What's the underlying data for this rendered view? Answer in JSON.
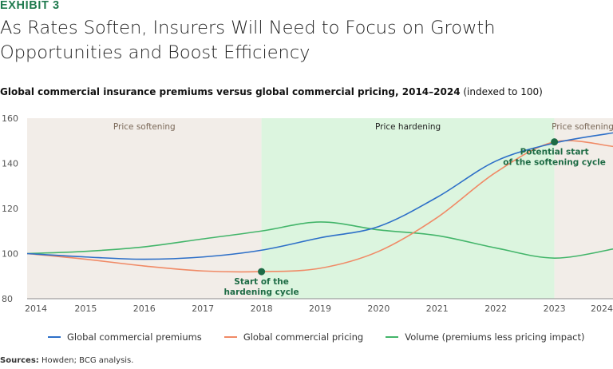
{
  "exhibit_label": "EXHIBIT 3",
  "title": "As Rates Soften, Insurers Will Need to Focus on Growth Opportunities and Boost Efficiency",
  "subtitle": {
    "main": "Global commercial insurance premiums versus global commercial pricing, 2014–2024",
    "note": "(indexed to 100)"
  },
  "sources": {
    "label": "Sources:",
    "text": "Howden; BCG analysis."
  },
  "colors": {
    "premiums": "#2d6fc8",
    "pricing": "#f08a66",
    "volume": "#43b56a",
    "softening_bg": "#f2ede8",
    "hardening_bg": "#dcf5df",
    "marker": "#1e6b45",
    "annotation_text": "#1e6b45",
    "softening_text": "#7a6858"
  },
  "chart_data": {
    "type": "line",
    "x_range": [
      2014,
      2024
    ],
    "xticks": [
      "2014",
      "2015",
      "2016",
      "2017",
      "2018",
      "2019",
      "2020",
      "2021",
      "2022",
      "2023",
      "2024"
    ],
    "ylim": [
      80,
      160
    ],
    "yticks": [
      "160",
      "140",
      "120",
      "100",
      "80"
    ],
    "regions": [
      {
        "label": "Price softening",
        "from": 2014,
        "to": 2018,
        "kind": "softening"
      },
      {
        "label": "Price hardening",
        "from": 2018,
        "to": 2023,
        "kind": "hardening"
      },
      {
        "label": "Price softening",
        "from": 2023,
        "to": 2024,
        "kind": "softening"
      }
    ],
    "series": [
      {
        "name": "Global commercial premiums",
        "key": "premiums",
        "x": [
          2014,
          2015,
          2016,
          2017,
          2018,
          2019,
          2020,
          2021,
          2022,
          2023,
          2024
        ],
        "values": [
          100,
          98.5,
          97.5,
          98.5,
          101.5,
          107,
          112,
          125,
          141,
          149,
          153.5
        ]
      },
      {
        "name": "Global commercial pricing",
        "key": "pricing",
        "x": [
          2014,
          2015,
          2016,
          2017,
          2018,
          2019,
          2020,
          2021,
          2022,
          2023,
          2024
        ],
        "values": [
          100,
          97.5,
          94.5,
          92.3,
          92,
          93.5,
          101,
          116,
          136,
          149.5,
          147.5
        ]
      },
      {
        "name": "Volume (premiums less pricing impact)",
        "key": "volume",
        "x": [
          2014,
          2015,
          2016,
          2017,
          2018,
          2019,
          2020,
          2021,
          2022,
          2023,
          2024
        ],
        "values": [
          100,
          101,
          103,
          106.5,
          110,
          114,
          110.5,
          108,
          102.5,
          98,
          102
        ]
      }
    ],
    "annotations": [
      {
        "lines": [
          "Start of the",
          "hardening cycle"
        ],
        "x": 2018,
        "y": 92,
        "text_side": "below"
      },
      {
        "lines": [
          "Potential start",
          "of the softening cycle"
        ],
        "x": 2023,
        "y": 149.5,
        "text_side": "below"
      }
    ]
  }
}
